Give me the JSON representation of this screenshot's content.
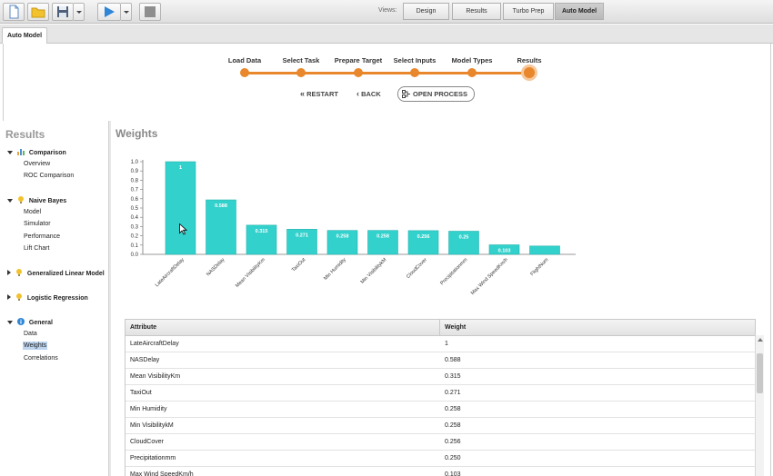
{
  "toolbar": {
    "buttons": [
      "new-process-icon",
      "open-folder-icon",
      "save-icon",
      "run-icon",
      "stop-icon"
    ],
    "views_label": "Views:",
    "view_tabs": [
      {
        "label": "Design",
        "active": false
      },
      {
        "label": "Results",
        "active": false
      },
      {
        "label": "Turbo Prep",
        "active": false
      },
      {
        "label": "Auto Model",
        "active": true
      }
    ]
  },
  "doc_tab": "Auto Model",
  "steps": [
    "Load Data",
    "Select Task",
    "Prepare Target",
    "Select Inputs",
    "Model Types",
    "Results"
  ],
  "actions": {
    "restart": "RESTART",
    "back": "BACK",
    "open_process": "OPEN PROCESS"
  },
  "sidebar": {
    "title": "Results",
    "groups": [
      {
        "label": "Comparison",
        "icon": "comparison-chart-icon",
        "expanded": true,
        "items": [
          "Overview",
          "ROC Comparison"
        ]
      },
      {
        "label": "Naive Bayes",
        "icon": "lightbulb-icon",
        "expanded": true,
        "items": [
          "Model",
          "Simulator",
          "Performance",
          "Lift Chart"
        ]
      },
      {
        "label": "Generalized Linear Model",
        "icon": "lightbulb-icon",
        "expanded": false,
        "items": []
      },
      {
        "label": "Logistic Regression",
        "icon": "lightbulb-icon",
        "expanded": false,
        "items": []
      },
      {
        "label": "General",
        "icon": "info-icon",
        "expanded": true,
        "items": [
          "Data",
          "Weights",
          "Correlations"
        ]
      }
    ],
    "selected": "Weights"
  },
  "section_title": "Weights",
  "chart_data": {
    "type": "bar",
    "categories": [
      "LateAircraftDelay",
      "NASDelay",
      "Mean VisibilityKm",
      "TaxiOut",
      "Min Humidity",
      "Min VisibilitykM",
      "CloudCover",
      "Precipitationmm",
      "Max Wind SpeedKm/h",
      "FlightNum"
    ],
    "values": [
      1,
      0.588,
      0.315,
      0.271,
      0.258,
      0.258,
      0.256,
      0.25,
      0.103,
      0.09
    ],
    "data_labels": [
      "1",
      "0.588",
      "0.315",
      "0.271",
      "0.258",
      "0.258",
      "0.256",
      "0.25",
      "0.103",
      ""
    ],
    "yticks": [
      "0.0",
      "0.1",
      "0.2",
      "0.3",
      "0.4",
      "0.5",
      "0.6",
      "0.7",
      "0.8",
      "0.9",
      "1.0"
    ],
    "ylim": [
      0,
      1.0
    ],
    "color": "#33d1cc"
  },
  "table": {
    "headers": [
      "Attribute",
      "Weight"
    ],
    "rows": [
      [
        "LateAircraftDelay",
        "1"
      ],
      [
        "NASDelay",
        "0.588"
      ],
      [
        "Mean VisibilityKm",
        "0.315"
      ],
      [
        "TaxiOut",
        "0.271"
      ],
      [
        "Min Humidity",
        "0.258"
      ],
      [
        "Min VisibilitykM",
        "0.258"
      ],
      [
        "CloudCover",
        "0.256"
      ],
      [
        "Precipitationmm",
        "0.250"
      ],
      [
        "Max Wind SpeedKm/h",
        "0.103"
      ]
    ]
  }
}
